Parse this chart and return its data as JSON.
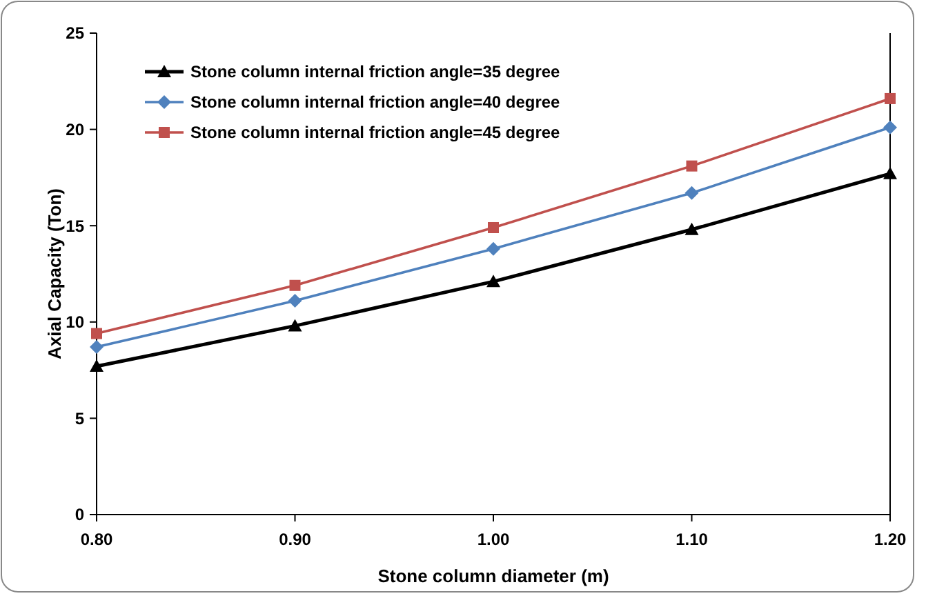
{
  "chart_data": {
    "type": "line",
    "xlabel": "Stone column diameter (m)",
    "ylabel": "Axial Capacity  (Ton)",
    "x": [
      0.8,
      0.9,
      1.0,
      1.1,
      1.2
    ],
    "series": [
      {
        "name": "Stone column internal friction angle=35 degree",
        "color": "#000000",
        "marker": "triangle",
        "values": [
          7.7,
          9.8,
          12.1,
          14.8,
          17.7
        ]
      },
      {
        "name": "Stone column internal friction angle=40 degree",
        "color": "#4f81bd",
        "marker": "diamond",
        "values": [
          8.7,
          11.1,
          13.8,
          16.7,
          20.1
        ]
      },
      {
        "name": "Stone column internal friction angle=45 degree",
        "color": "#c0504d",
        "marker": "square",
        "values": [
          9.4,
          11.9,
          14.9,
          18.1,
          21.6
        ]
      }
    ],
    "xlim": [
      0.8,
      1.2
    ],
    "xticks": [
      {
        "value": 0.8,
        "label": "0.80"
      },
      {
        "value": 0.9,
        "label": "0.90"
      },
      {
        "value": 1.0,
        "label": "1.00"
      },
      {
        "value": 1.1,
        "label": "1.10"
      },
      {
        "value": 1.2,
        "label": "1.20"
      }
    ],
    "ylim": [
      0,
      25
    ],
    "yticks": [
      0,
      5,
      10,
      15,
      20,
      25
    ],
    "grid": false,
    "legend": "top left"
  }
}
